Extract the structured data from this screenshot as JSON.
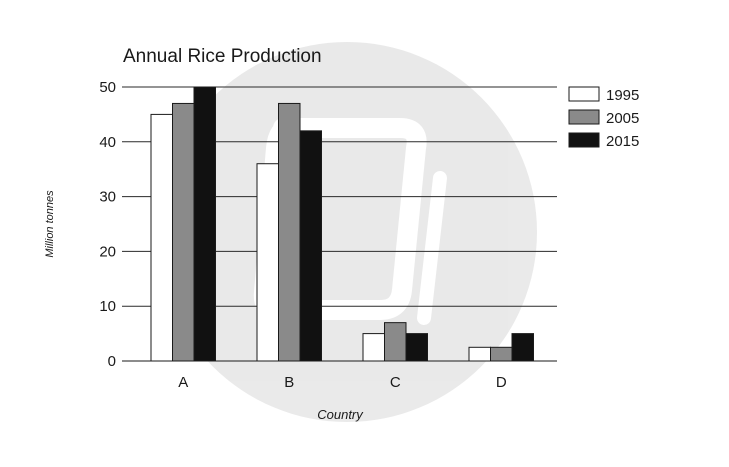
{
  "chart_data": {
    "type": "bar",
    "title": "Annual Rice Production",
    "xlabel": "Country",
    "ylabel": "Million tonnes",
    "categories": [
      "A",
      "B",
      "C",
      "D"
    ],
    "series": [
      {
        "name": "1995",
        "values": [
          45,
          36,
          5,
          2.5
        ],
        "color": "#ffffff"
      },
      {
        "name": "2005",
        "values": [
          47,
          47,
          7,
          2.5
        ],
        "color": "#8a8a8a"
      },
      {
        "name": "2015",
        "values": [
          50,
          42,
          5,
          5
        ],
        "color": "#111111"
      }
    ],
    "ylim": [
      0,
      50
    ],
    "yticks": [
      0,
      10,
      20,
      30,
      40,
      50
    ],
    "grid": true,
    "legend_position": "top-right"
  }
}
